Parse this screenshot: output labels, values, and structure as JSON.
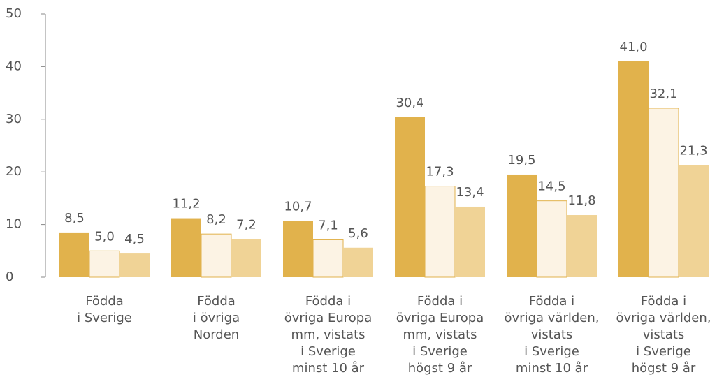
{
  "chart_data": {
    "type": "bar",
    "categories": [
      [
        "Födda",
        "i Sverige"
      ],
      [
        "Födda",
        "i övriga",
        "Norden"
      ],
      [
        "Födda i",
        "övriga Europa",
        "mm, vistats",
        "i Sverige",
        "minst 10 år"
      ],
      [
        "Födda i",
        "övriga Europa",
        "mm, vistats",
        "i Sverige",
        "högst 9 år"
      ],
      [
        "Födda i",
        "övriga världen,",
        "vistats",
        "i Sverige",
        "minst 10 år"
      ],
      [
        "Födda i",
        "övriga världen,",
        "vistats",
        "i Sverige",
        "högst 9 år"
      ]
    ],
    "series": [
      {
        "color": "#e1b24c",
        "values": [
          8.5,
          11.2,
          10.7,
          30.4,
          19.5,
          41.0
        ],
        "value_labels": [
          "8,5",
          "11,2",
          "10,7",
          "30,4",
          "19,5",
          "41,0"
        ]
      },
      {
        "color": "#fcf3e4",
        "stroke": "#e1b24c",
        "values": [
          5.0,
          8.2,
          7.1,
          17.3,
          14.5,
          32.1
        ],
        "value_labels": [
          "5,0",
          "8,2",
          "7,1",
          "17,3",
          "14,5",
          "32,1"
        ]
      },
      {
        "color": "#f0d396",
        "values": [
          4.5,
          7.2,
          5.6,
          13.4,
          11.8,
          21.3
        ],
        "value_labels": [
          "4,5",
          "7,2",
          "5,6",
          "13,4",
          "11,8",
          "21,3"
        ]
      }
    ],
    "ylim": [
      0,
      50
    ],
    "yticks": [
      0,
      10,
      20,
      30,
      40,
      50
    ],
    "grid": false
  }
}
